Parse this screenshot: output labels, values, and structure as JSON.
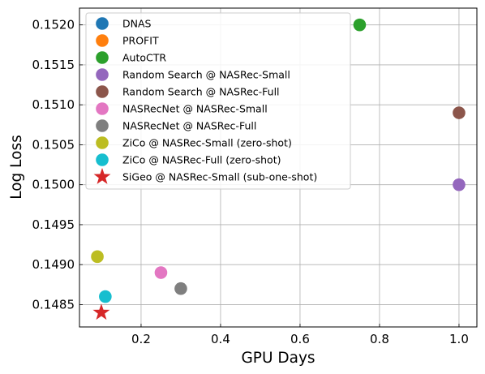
{
  "chart_data": {
    "type": "scatter",
    "xlabel": "GPU Days",
    "ylabel": "Log Loss",
    "xlim": [
      0.045,
      1.045
    ],
    "ylim": [
      0.14822,
      0.15221
    ],
    "x_ticks": [
      0.2,
      0.4,
      0.6,
      0.8,
      1.0
    ],
    "x_tick_labels": [
      "0.2",
      "0.4",
      "0.6",
      "0.8",
      "1.0"
    ],
    "y_ticks": [
      0.1485,
      0.149,
      0.1495,
      0.15,
      0.1505,
      0.151,
      0.1515,
      0.152
    ],
    "y_tick_labels": [
      "0.1485",
      "0.1490",
      "0.1495",
      "0.1500",
      "0.1505",
      "0.1510",
      "0.1515",
      "0.1520"
    ],
    "grid": true,
    "legend_position": "top-left",
    "series": [
      {
        "name": "DNAS",
        "color": "#1f77b4",
        "marker": "circle",
        "points": []
      },
      {
        "name": "PROFIT",
        "color": "#ff7f0e",
        "marker": "circle",
        "points": []
      },
      {
        "name": "AutoCTR",
        "color": "#2ca02c",
        "marker": "circle",
        "points": [
          {
            "x": 0.75,
            "y": 0.152
          }
        ]
      },
      {
        "name": "Random Search @ NASRec-Small",
        "color": "#9467bd",
        "marker": "circle",
        "points": [
          {
            "x": 1.0,
            "y": 0.15
          }
        ]
      },
      {
        "name": "Random Search @ NASRec-Full",
        "color": "#8c564b",
        "marker": "circle",
        "points": [
          {
            "x": 1.0,
            "y": 0.1509
          }
        ]
      },
      {
        "name": "NASRecNet @ NASRec-Small",
        "color": "#e377c2",
        "marker": "circle",
        "points": [
          {
            "x": 0.25,
            "y": 0.1489
          }
        ]
      },
      {
        "name": "NASRecNet @ NASRec-Full",
        "color": "#7f7f7f",
        "marker": "circle",
        "points": [
          {
            "x": 0.3,
            "y": 0.1487
          }
        ]
      },
      {
        "name": "ZiCo @ NASRec-Small (zero-shot)",
        "color": "#bcbd22",
        "marker": "circle",
        "points": [
          {
            "x": 0.09,
            "y": 0.1491
          }
        ]
      },
      {
        "name": "ZiCo @ NASRec-Full (zero-shot)",
        "color": "#17becf",
        "marker": "circle",
        "points": [
          {
            "x": 0.11,
            "y": 0.1486
          }
        ]
      },
      {
        "name": "SiGeo @ NASRec-Small (sub-one-shot)",
        "color": "#d62728",
        "marker": "star",
        "points": [
          {
            "x": 0.1,
            "y": 0.1484
          }
        ]
      }
    ]
  }
}
